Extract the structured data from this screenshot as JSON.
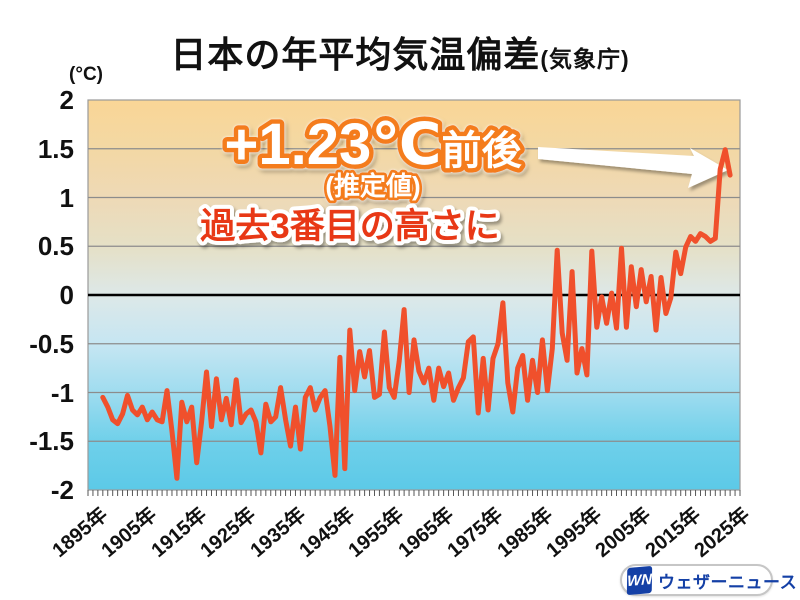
{
  "header": {
    "title": "日本の年平均気温偏差",
    "title_suffix": "(気象庁)"
  },
  "chart_data": {
    "type": "line",
    "title": "日本の年平均気温偏差(気象庁)",
    "unit_label": "(°C)",
    "ylim": [
      -2,
      2
    ],
    "ytick_labels": [
      "2",
      "1.5",
      "1",
      "0.5",
      "0",
      "-0.5",
      "-1",
      "-1.5",
      "-2"
    ],
    "ytick_values": [
      2,
      1.5,
      1,
      0.5,
      0,
      -0.5,
      -1,
      -1.5,
      -2
    ],
    "xtick_labels": [
      "1895年",
      "1905年",
      "1915年",
      "1925年",
      "1935年",
      "1945年",
      "1955年",
      "1965年",
      "1975年",
      "1985年",
      "1995年",
      "2005年",
      "2015年",
      "2025年"
    ],
    "xtick_years": [
      1895,
      1905,
      1915,
      1925,
      1935,
      1945,
      1955,
      1965,
      1975,
      1985,
      1995,
      2005,
      2015,
      2025
    ],
    "x_axis_start_year": 1895,
    "x_axis_end_year": 2027,
    "grid": true,
    "legend": "none",
    "line_color": "#f0502c",
    "grid_color": "#8c8c8c",
    "zero_line_color": "#000000",
    "tick_color": "#555555",
    "bg_gradient": [
      "#fad696",
      "#f3d8a4",
      "#eed9b6",
      "#e5e0c6",
      "#dde8e8",
      "#c6e6f2",
      "#9fdcef",
      "#6fd0ea",
      "#5cc9e7"
    ],
    "series": [
      {
        "name": "年平均気温偏差",
        "start_year": 1898,
        "end_year": 2025,
        "values": [
          -1.05,
          -1.15,
          -1.28,
          -1.32,
          -1.22,
          -1.03,
          -1.18,
          -1.23,
          -1.15,
          -1.28,
          -1.2,
          -1.28,
          -1.3,
          -0.98,
          -1.4,
          -1.88,
          -1.1,
          -1.3,
          -1.15,
          -1.72,
          -1.3,
          -0.79,
          -1.35,
          -0.86,
          -1.28,
          -1.06,
          -1.33,
          -0.87,
          -1.31,
          -1.22,
          -1.18,
          -1.3,
          -1.62,
          -1.12,
          -1.3,
          -1.25,
          -0.95,
          -1.28,
          -1.55,
          -1.15,
          -1.58,
          -1.05,
          -0.95,
          -1.18,
          -1.05,
          -0.98,
          -1.35,
          -1.85,
          -0.64,
          -1.78,
          -0.36,
          -0.98,
          -0.58,
          -0.84,
          -0.57,
          -1.05,
          -1.02,
          -0.38,
          -0.95,
          -1.05,
          -0.68,
          -0.15,
          -1.0,
          -0.46,
          -0.78,
          -0.9,
          -0.75,
          -1.08,
          -0.75,
          -0.94,
          -0.8,
          -1.08,
          -0.95,
          -0.85,
          -0.48,
          -0.43,
          -1.21,
          -0.65,
          -1.18,
          -0.65,
          -0.5,
          -0.08,
          -0.9,
          -1.2,
          -0.75,
          -0.62,
          -1.08,
          -0.67,
          -1.0,
          -0.46,
          -0.98,
          -0.55,
          0.46,
          -0.39,
          -0.67,
          0.24,
          -0.8,
          -0.55,
          -0.82,
          0.45,
          -0.33,
          -0.02,
          -0.29,
          0.02,
          -0.34,
          0.48,
          -0.33,
          0.29,
          -0.12,
          0.26,
          -0.07,
          0.19,
          -0.36,
          0.18,
          -0.19,
          -0.03,
          0.44,
          0.22,
          0.49,
          0.6,
          0.55,
          0.63,
          0.6,
          0.55,
          0.58,
          1.29,
          1.49,
          1.23
        ]
      }
    ]
  },
  "annotation": {
    "headline_value": "+1.23℃",
    "headline_suffix": "前後",
    "sub": "(推定値)",
    "note": "過去3番目の高さに",
    "headline_stroke_color": "#f47c1e",
    "note_fill_color": "#e83812"
  },
  "logo": {
    "mark": "WN",
    "text": "ウェザーニュース",
    "color": "#1440a6"
  }
}
